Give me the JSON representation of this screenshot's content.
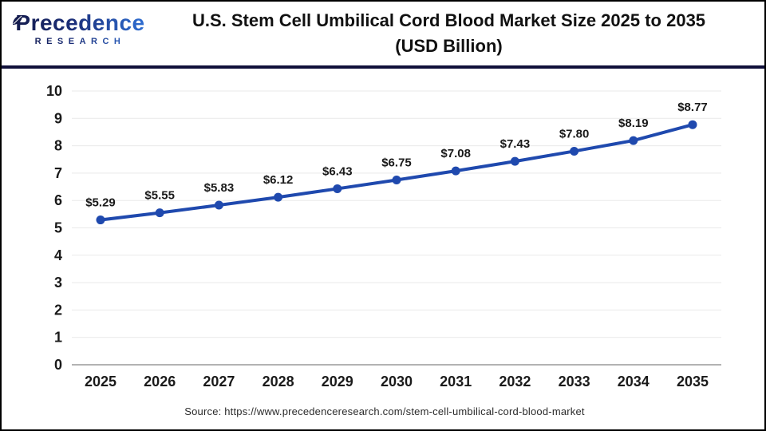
{
  "logo": {
    "brand": "Precedence",
    "sub": "RESEARCH"
  },
  "header": {
    "title_line1": "U.S. Stem Cell Umbilical Cord Blood Market Size 2025 to 2035",
    "title_line2": "(USD Billion)"
  },
  "footer": {
    "source": "Source: https://www.precedenceresearch.com/stem-cell-umbilical-cord-blood-market"
  },
  "colors": {
    "line": "#1f49ae",
    "marker": "#1f49ae",
    "grid": "#e9e9e9",
    "axis_baseline": "#b3b3b3",
    "header_rule": "#10103a",
    "label_text": "#1a1a1a",
    "tick_text": "#1a1a1a"
  },
  "chart_data": {
    "type": "line",
    "title": "U.S. Stem Cell Umbilical Cord Blood Market Size 2025 to 2035 (USD Billion)",
    "categories": [
      "2025",
      "2026",
      "2027",
      "2028",
      "2029",
      "2030",
      "2031",
      "2032",
      "2033",
      "2034",
      "2035"
    ],
    "values": [
      5.29,
      5.55,
      5.83,
      6.12,
      6.43,
      6.75,
      7.08,
      7.43,
      7.8,
      8.19,
      8.77
    ],
    "labels": [
      "$5.29",
      "$5.55",
      "$5.83",
      "$6.12",
      "$6.43",
      "$6.75",
      "$7.08",
      "$7.43",
      "$7.80",
      "$8.19",
      "$8.77"
    ],
    "xlabel": "",
    "ylabel": "",
    "ylim": [
      0,
      10
    ],
    "ytick_step": 1,
    "grid": true,
    "legend": false
  }
}
